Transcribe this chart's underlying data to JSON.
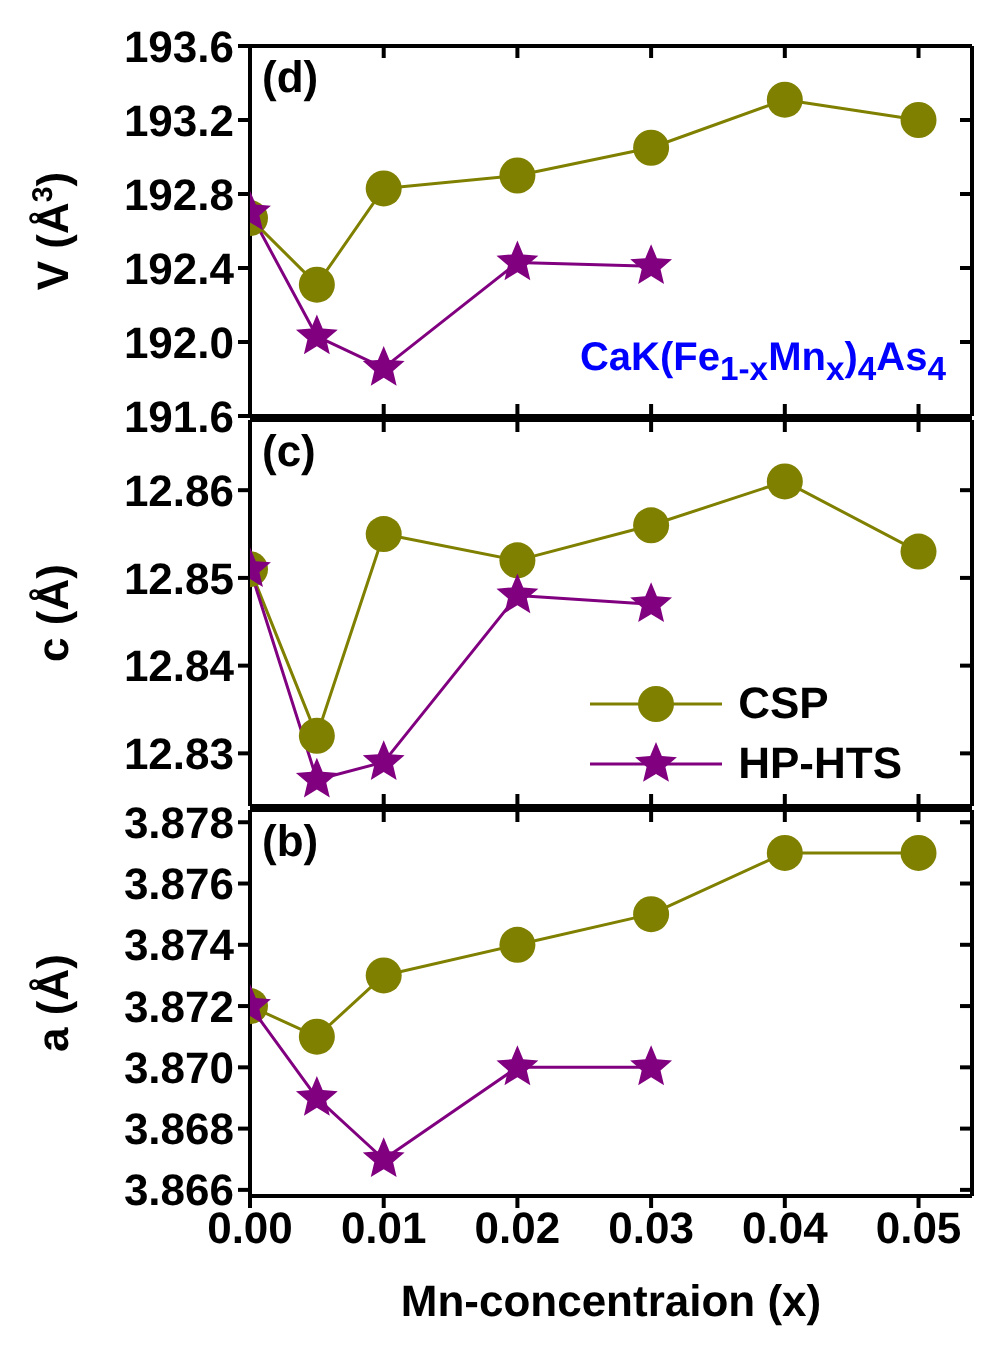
{
  "chart_data": [
    {
      "type": "line",
      "ylabel": "V (Å$^{3}$)",
      "annotations": [
        "(d)",
        "CaK(Fe$_{1-x}$Mn$_{x}$)$_{4}$As$_{4}$"
      ],
      "xlim": [
        0,
        0.054
      ],
      "xticks": [
        0,
        0.01,
        0.02,
        0.03,
        0.04,
        0.05
      ],
      "ylim": [
        191.6,
        193.6
      ],
      "yticks": [
        191.6,
        {
          "value": 192,
          "label": "192.0"
        },
        192.4,
        192.8,
        193.2,
        193.6
      ],
      "tick_labels": "y",
      "line_style": "solid",
      "series": [
        {
          "color": "#808000",
          "marker": "circle",
          "x": [
            0,
            0.005,
            0.01,
            0.02,
            0.03,
            0.04,
            0.05
          ],
          "values": [
            192.67,
            192.31,
            192.83,
            192.9,
            193.05,
            193.31,
            193.2
          ]
        },
        {
          "color": "#800080",
          "marker": "star",
          "x": [
            0,
            0.005,
            0.01,
            0.02,
            0.03
          ],
          "values": [
            192.7,
            192.03,
            191.86,
            192.43,
            192.41
          ]
        }
      ]
    },
    {
      "type": "line",
      "ylabel": "c (Å)",
      "annotations": [
        "(c)"
      ],
      "xlim": [
        0,
        0.054
      ],
      "xticks": [
        0,
        0.01,
        0.02,
        0.03,
        0.04,
        0.05
      ],
      "ylim": [
        12.824,
        12.868
      ],
      "yticks": [
        12.83,
        12.84,
        12.85,
        12.86
      ],
      "tick_labels": "y",
      "legend": "bottom right",
      "line_style": "solid",
      "series": [
        {
          "name": "CSP",
          "color": "#808000",
          "marker": "circle",
          "x": [
            0,
            0.005,
            0.01,
            0.02,
            0.03,
            0.04,
            0.05
          ],
          "values": [
            12.851,
            12.832,
            12.855,
            12.852,
            12.856,
            12.861,
            12.853
          ]
        },
        {
          "name": "HP-HTS",
          "color": "#800080",
          "marker": "star",
          "x": [
            0,
            0.005,
            0.01,
            0.02,
            0.03
          ],
          "values": [
            12.851,
            12.827,
            12.829,
            12.848,
            12.847
          ]
        }
      ]
    },
    {
      "type": "line",
      "xlabel": "Mn-concentraion (x)",
      "ylabel": "a (Å)",
      "annotations": [
        "(b)"
      ],
      "xlim": [
        0,
        0.054
      ],
      "xticks": [
        {
          "value": 0,
          "label": "0.00"
        },
        0.01,
        0.02,
        0.03,
        0.04,
        0.05
      ],
      "ylim": [
        3.8658,
        3.8784
      ],
      "yticks": [
        3.866,
        3.868,
        {
          "value": 3.87,
          "label": "3.870"
        },
        3.872,
        3.874,
        3.876,
        3.878
      ],
      "line_style": "solid",
      "series": [
        {
          "color": "#808000",
          "marker": "circle",
          "x": [
            0,
            0.005,
            0.01,
            0.02,
            0.03,
            0.04,
            0.05
          ],
          "values": [
            3.872,
            3.871,
            3.873,
            3.874,
            3.875,
            3.877,
            3.877
          ]
        },
        {
          "color": "#800080",
          "marker": "star",
          "x": [
            0,
            0.005,
            0.01,
            0.02,
            0.03
          ],
          "values": [
            3.872,
            3.869,
            3.867,
            3.87,
            3.87
          ]
        }
      ]
    }
  ]
}
